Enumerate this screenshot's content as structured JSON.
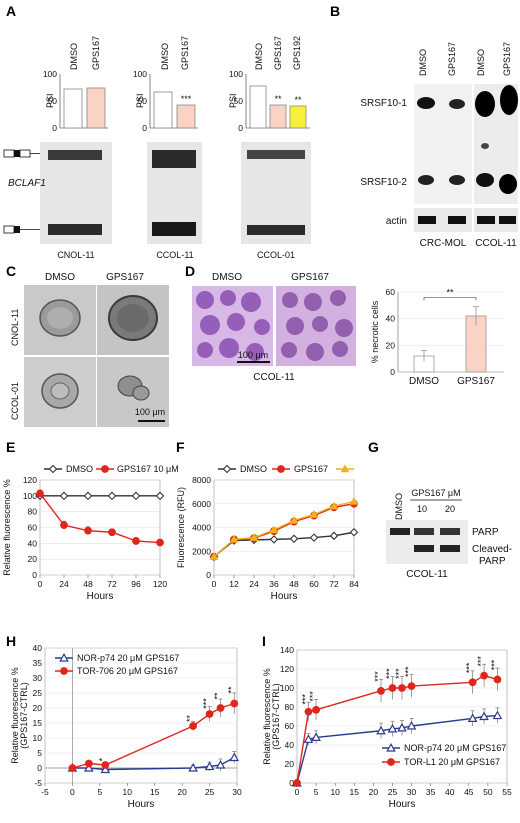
{
  "figure": {
    "panels": {
      "A": {
        "letter": "A",
        "gene_label": "BCLAF1",
        "psi_label": "PSI",
        "subpanels": [
          {
            "cell_line": "CNOL-11",
            "lanes": [
              "DMSO",
              "GPS167"
            ],
            "psi_values": [
              72,
              74
            ],
            "ticks": [
              "0",
              "50",
              "100"
            ],
            "sig": [
              "",
              ""
            ]
          },
          {
            "cell_line": "CCOL-11",
            "lanes": [
              "DMSO",
              "GPS167"
            ],
            "psi_values": [
              67,
              42
            ],
            "ticks": [
              "0",
              "50",
              "100"
            ],
            "sig": [
              "",
              "***"
            ]
          },
          {
            "cell_line": "CCOL-01",
            "lanes": [
              "DMSO",
              "GPS167",
              "GPS192"
            ],
            "psi_values": [
              78,
              43,
              41
            ],
            "ticks": [
              "0",
              "50",
              "100"
            ],
            "sig": [
              "",
              "**",
              "**"
            ]
          }
        ]
      },
      "B": {
        "letter": "B",
        "lanes": [
          "DMSO",
          "GPS167",
          "DMSO",
          "GPS167"
        ],
        "bands": [
          "SRSF10-1",
          "SRSF10-2",
          "actin"
        ],
        "cell_lines": [
          "CRC-MOL",
          "CCOL-11"
        ]
      },
      "C": {
        "letter": "C",
        "columns": [
          "DMSO",
          "GPS167"
        ],
        "rows": [
          "CNOL-11",
          "CCOL-01"
        ],
        "scale_bar": "100 μm"
      },
      "D": {
        "letter": "D",
        "columns": [
          "DMSO",
          "GPS167"
        ],
        "scale_bar": "100 μm",
        "cell_line": "CCOL-11",
        "significance": "**"
      },
      "E": {
        "letter": "E"
      },
      "F": {
        "letter": "F"
      },
      "G": {
        "letter": "G",
        "lane_dmso": "DMSO",
        "treatment": "GPS167 μM",
        "doses": [
          "10",
          "20"
        ],
        "bands": [
          "PARP",
          "Cleaved-",
          "PARP"
        ],
        "cell_line": "CCOL-11"
      },
      "H": {
        "letter": "H"
      },
      "I": {
        "letter": "I"
      }
    }
  },
  "chart_data": [
    {
      "panel": "D",
      "type": "bar",
      "categories": [
        "DMSO",
        "GPS167"
      ],
      "values": [
        12,
        42
      ],
      "errors": [
        4,
        7
      ],
      "colors": [
        "#ffffff",
        "#fbd3c4"
      ],
      "ylabel": "% necrotic cells",
      "ylim": [
        0,
        60
      ],
      "yticks": [
        "0",
        "20",
        "40",
        "60"
      ]
    },
    {
      "panel": "E",
      "type": "line",
      "xlabel": "Hours",
      "ylabel": "Relative fluorescence %",
      "xlim": [
        0,
        120
      ],
      "ylim": [
        0,
        120
      ],
      "xticks": [
        "0",
        "24",
        "48",
        "72",
        "96",
        "120"
      ],
      "yticks": [
        "0",
        "20",
        "40",
        "60",
        "80",
        "100",
        "120"
      ],
      "legend": "top",
      "series": [
        {
          "name": "DMSO",
          "color": "#333333",
          "marker": "diamond",
          "x": [
            0,
            24,
            48,
            72,
            96,
            120
          ],
          "y": [
            100,
            100,
            100,
            100,
            100,
            100
          ],
          "err": [
            0,
            0,
            0,
            0,
            0,
            0
          ]
        },
        {
          "name": "GPS167 10 μM",
          "color": "#e0261c",
          "marker": "circle",
          "x": [
            0,
            24,
            48,
            72,
            96,
            120
          ],
          "y": [
            103,
            63,
            56,
            54,
            43,
            41
          ],
          "err": [
            4,
            5,
            5,
            4,
            2,
            2
          ]
        }
      ]
    },
    {
      "panel": "F",
      "type": "line",
      "xlabel": "Hours",
      "ylabel": "Fluorescence (RFU)",
      "xlim": [
        0,
        84
      ],
      "ylim": [
        0,
        8000
      ],
      "xticks": [
        "0",
        "12",
        "24",
        "36",
        "48",
        "60",
        "72",
        "84"
      ],
      "yticks": [
        "0",
        "2000",
        "4000",
        "6000",
        "8000"
      ],
      "legend": "top",
      "series": [
        {
          "name": "DMSO",
          "color": "#333333",
          "marker": "diamond",
          "x": [
            0,
            12,
            24,
            36,
            48,
            60,
            72,
            84
          ],
          "y": [
            1550,
            2900,
            2950,
            3000,
            3050,
            3150,
            3300,
            3600
          ]
        },
        {
          "name": "GPS167",
          "color": "#e0261c",
          "marker": "circle",
          "x": [
            0,
            12,
            24,
            36,
            48,
            60,
            72,
            84
          ],
          "y": [
            1550,
            3000,
            3100,
            3700,
            4500,
            5000,
            5700,
            6000
          ]
        },
        {
          "name": "",
          "color": "#f2b21c",
          "marker": "triangle",
          "x": [
            0,
            12,
            24,
            36,
            48,
            60,
            72,
            84
          ],
          "y": [
            1550,
            3000,
            3150,
            3800,
            4600,
            5100,
            5800,
            6200
          ]
        }
      ]
    },
    {
      "panel": "H",
      "type": "line",
      "xlabel": "Hours",
      "ylabel": "Relative fluorescence % (GPS167-CTRL)",
      "xlim": [
        -5,
        30
      ],
      "ylim": [
        -5,
        40
      ],
      "xticks": [
        "-5",
        "0",
        "5",
        "10",
        "15",
        "20",
        "25",
        "30"
      ],
      "yticks": [
        "-5",
        "0",
        "5",
        "10",
        "15",
        "20",
        "25",
        "30",
        "35",
        "40"
      ],
      "legend": "top-left",
      "series": [
        {
          "name": "NOR-p74 20 μM GPS167",
          "color": "#2b3a8f",
          "marker": "triangle-open",
          "x": [
            0,
            3,
            6,
            22,
            25,
            27,
            29.5
          ],
          "y": [
            0,
            0,
            -0.5,
            0,
            0.5,
            1,
            3.5
          ],
          "err": [
            0.5,
            0.5,
            0.5,
            1,
            1.5,
            2,
            2
          ]
        },
        {
          "name": "TOR-706 20 μM GPS167",
          "color": "#e0261c",
          "marker": "circle",
          "x": [
            0,
            3,
            6,
            22,
            25,
            27,
            29.5
          ],
          "y": [
            0,
            1.5,
            1,
            14,
            18,
            20,
            21.5
          ],
          "err": [
            0.5,
            0.5,
            0.8,
            1.5,
            2.5,
            3,
            3.5
          ]
        }
      ],
      "annotations": [
        {
          "x": 6,
          "text": "*"
        },
        {
          "x": 22,
          "text": "**"
        },
        {
          "x": 25,
          "text": "***"
        },
        {
          "x": 27,
          "text": "**"
        },
        {
          "x": 29.5,
          "text": "**"
        }
      ]
    },
    {
      "panel": "I",
      "type": "line",
      "xlabel": "Hours",
      "ylabel": "Relative fluorescence % (GPS167-CTRL)",
      "xlim": [
        0,
        55
      ],
      "ylim": [
        0,
        140
      ],
      "xticks": [
        "0",
        "5",
        "10",
        "15",
        "20",
        "25",
        "30",
        "35",
        "40",
        "45",
        "50",
        "55"
      ],
      "yticks": [
        "0",
        "20",
        "40",
        "60",
        "80",
        "100",
        "120",
        "140"
      ],
      "legend": "bottom-right",
      "series": [
        {
          "name": "NOR-p74 20 μM GPS167",
          "color": "#2b3a8f",
          "marker": "triangle-open",
          "x": [
            0,
            3,
            5,
            22,
            25,
            27.5,
            30,
            46,
            49,
            52.5
          ],
          "y": [
            0,
            46,
            48,
            55,
            57,
            58,
            60,
            68,
            70,
            71
          ],
          "err": [
            0,
            6,
            7,
            8,
            8,
            8,
            8,
            8,
            8,
            8
          ]
        },
        {
          "name": "TOR-L1 20 μM GPS167",
          "color": "#e0261c",
          "marker": "circle",
          "x": [
            0,
            3,
            5,
            22,
            25,
            27.5,
            30,
            46,
            49,
            52.5
          ],
          "y": [
            0,
            75,
            77,
            97,
            100,
            100,
            102,
            106,
            113,
            109
          ],
          "err": [
            0,
            10,
            11,
            12,
            12,
            12,
            12,
            12,
            12,
            12
          ]
        }
      ],
      "annotations": [
        {
          "x": 3,
          "text": "***"
        },
        {
          "x": 5,
          "text": "***"
        },
        {
          "x": 22,
          "text": "***"
        },
        {
          "x": 25,
          "text": "***"
        },
        {
          "x": 27.5,
          "text": "***"
        },
        {
          "x": 30,
          "text": "***"
        },
        {
          "x": 46,
          "text": "***"
        },
        {
          "x": 49,
          "text": "***"
        },
        {
          "x": 52.5,
          "text": "***"
        }
      ]
    }
  ]
}
